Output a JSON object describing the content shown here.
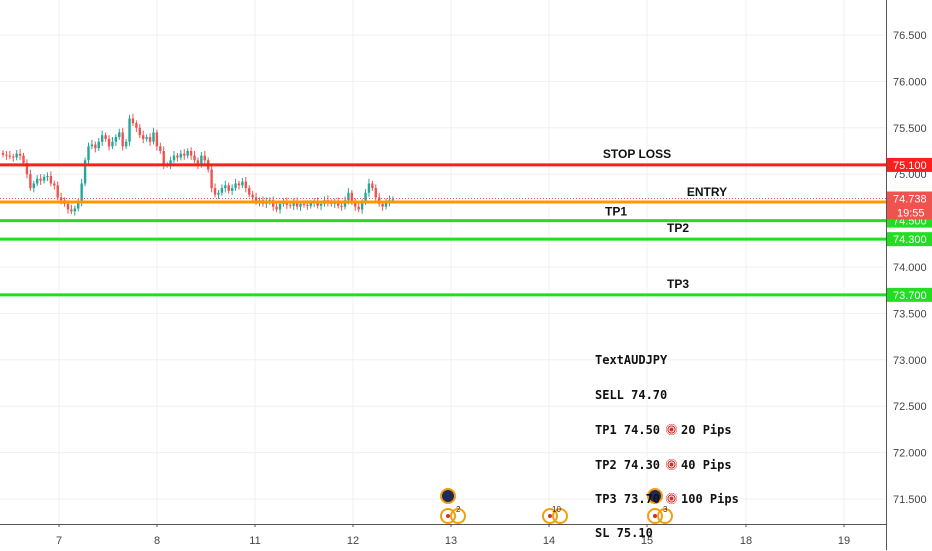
{
  "chart_data": {
    "type": "candlestick",
    "symbol": "AUDJPY",
    "x_ticks": [
      "7",
      "8",
      "11",
      "12",
      "13",
      "14",
      "15",
      "18",
      "19"
    ],
    "y_ticks": [
      "71.500",
      "72.000",
      "72.500",
      "73.000",
      "73.500",
      "74.000",
      "74.500",
      "75.000",
      "75.500",
      "76.000",
      "76.500"
    ],
    "ylim": [
      71.08,
      76.87
    ],
    "grid": true,
    "candles_close": [
      75.21,
      75.2,
      75.19,
      75.18,
      75.22,
      75.2,
      75.12,
      75.0,
      74.85,
      74.9,
      74.95,
      74.93,
      74.97,
      74.98,
      74.9,
      74.88,
      74.75,
      74.72,
      74.68,
      74.62,
      74.6,
      74.63,
      74.7,
      74.9,
      75.15,
      75.3,
      75.32,
      75.28,
      75.35,
      75.42,
      75.38,
      75.3,
      75.35,
      75.4,
      75.45,
      75.3,
      75.35,
      75.6,
      75.55,
      75.5,
      75.42,
      75.38,
      75.4,
      75.35,
      75.45,
      75.3,
      75.25,
      75.1,
      75.1,
      75.15,
      75.2,
      75.18,
      75.22,
      75.2,
      75.25,
      75.2,
      75.15,
      75.1,
      75.2,
      75.15,
      75.05,
      74.85,
      74.78,
      74.8,
      74.85,
      74.88,
      74.82,
      74.85,
      74.9,
      74.88,
      74.92,
      74.85,
      74.78,
      74.75,
      74.7,
      74.72,
      74.68,
      74.7,
      74.72,
      74.65,
      74.62,
      74.68,
      74.7,
      74.67,
      74.66,
      74.7,
      74.65,
      74.68,
      74.67,
      74.66,
      74.69,
      74.7,
      74.66,
      74.68,
      74.72,
      74.7,
      74.68,
      74.7,
      74.66,
      74.65,
      74.72,
      74.8,
      74.7,
      74.65,
      74.62,
      74.7,
      74.8,
      74.9,
      74.85,
      74.75,
      74.68,
      74.65,
      74.7,
      74.72,
      74.73
    ],
    "levels": [
      {
        "label": "STOP LOSS",
        "price": 75.1,
        "tag": "75.100",
        "color": "#ff1e1e"
      },
      {
        "label": "ENTRY",
        "price": 74.7,
        "tag": "74.700",
        "color": "#ff9800"
      },
      {
        "label": "TP1",
        "price": 74.5,
        "tag": "74.500",
        "color": "#22dd22"
      },
      {
        "label": "TP2",
        "price": 74.3,
        "tag": "74.300",
        "color": "#22dd22"
      },
      {
        "label": "TP3",
        "price": 73.7,
        "tag": "73.700",
        "color": "#22dd22"
      }
    ],
    "current_price": {
      "price": 74.738,
      "tag": "74.738",
      "countdown": "19:55",
      "color": "#ef5350"
    }
  },
  "note": {
    "line1": "TextAUDJPY",
    "line2": "SELL 74.70",
    "line3a": "TP1 74.50",
    "line3b": "20 Pips",
    "line4a": "TP2 74.30",
    "line4b": "40 Pips",
    "line5a": "TP3 73.70",
    "line5b": "100 Pips",
    "line6": "SL 75.10"
  },
  "events": [
    {
      "day": "13",
      "count": "2"
    },
    {
      "day": "14",
      "count": "10"
    },
    {
      "day": "15",
      "count": "3"
    }
  ],
  "colors": {
    "up": "#26a69a",
    "down": "#ef5350",
    "grid": "#eef1f5",
    "axis": "#444444"
  }
}
